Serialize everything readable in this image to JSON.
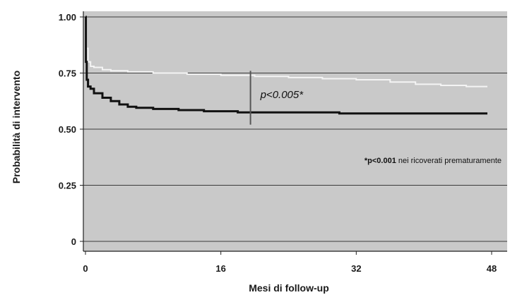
{
  "chart_data": {
    "type": "line",
    "xlabel": "Mesi di follow-up",
    "ylabel": "Probabilità di intervento",
    "xlim": [
      0,
      48
    ],
    "ylim": [
      0,
      1
    ],
    "x_ticks": [
      0,
      16,
      32,
      48
    ],
    "x_tick_labels": [
      "0",
      "16",
      "32",
      "48"
    ],
    "y_ticks": [
      0,
      0.25,
      0.5,
      0.75,
      1.0
    ],
    "y_tick_labels": [
      "0",
      "0.25",
      "0.50",
      "0.75",
      "1.00"
    ],
    "grid": "horizontal",
    "background_color": "#c9c9c9",
    "series": [
      {
        "color": "#f4f4f4",
        "points": [
          [
            0,
            1.0
          ],
          [
            0.1,
            0.86
          ],
          [
            0.3,
            0.8
          ],
          [
            0.6,
            0.78
          ],
          [
            1,
            0.775
          ],
          [
            2,
            0.765
          ],
          [
            3,
            0.76
          ],
          [
            5,
            0.755
          ],
          [
            8,
            0.75
          ],
          [
            12,
            0.745
          ],
          [
            16,
            0.74
          ],
          [
            20,
            0.735
          ],
          [
            24,
            0.73
          ],
          [
            28,
            0.725
          ],
          [
            32,
            0.72
          ],
          [
            36,
            0.71
          ],
          [
            39,
            0.7
          ],
          [
            42,
            0.695
          ],
          [
            45,
            0.69
          ],
          [
            47.5,
            0.69
          ]
        ]
      },
      {
        "color": "#111111",
        "points": [
          [
            0,
            1.0
          ],
          [
            0.05,
            0.8
          ],
          [
            0.15,
            0.72
          ],
          [
            0.3,
            0.69
          ],
          [
            0.6,
            0.68
          ],
          [
            1,
            0.66
          ],
          [
            2,
            0.64
          ],
          [
            3,
            0.625
          ],
          [
            4,
            0.61
          ],
          [
            5,
            0.6
          ],
          [
            6,
            0.595
          ],
          [
            8,
            0.59
          ],
          [
            11,
            0.585
          ],
          [
            14,
            0.58
          ],
          [
            18,
            0.575
          ],
          [
            22,
            0.575
          ],
          [
            30,
            0.57
          ],
          [
            40,
            0.57
          ],
          [
            47.5,
            0.57
          ]
        ]
      }
    ],
    "marker_x": 19.5,
    "marker_range": [
      0.52,
      0.76
    ],
    "annotation_p": "p<0.005*",
    "footnote_p": "*p<0.001",
    "footnote_text": " nei ricoverati prematuramente"
  }
}
